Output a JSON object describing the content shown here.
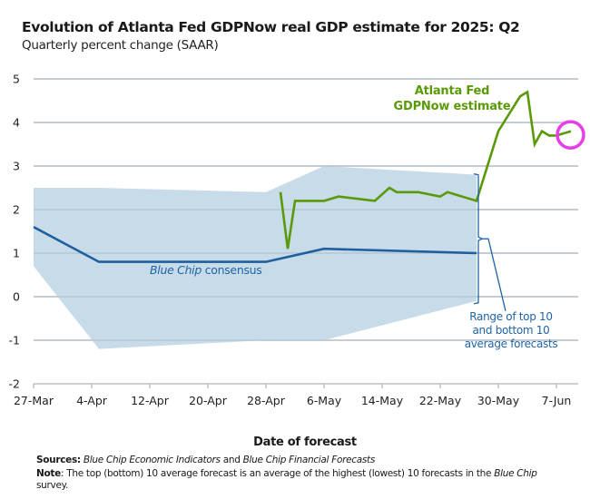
{
  "header": {
    "title": "Evolution of Atlanta Fed GDPNow real GDP estimate for 2025: Q2",
    "subtitle": "Quarterly percent change (SAAR)"
  },
  "footer": {
    "sources_label": "Sources:",
    "sources_part1": "Blue Chip Economic Indicators",
    "sources_and": " and ",
    "sources_part2": "Blue Chip Financial Forecasts",
    "note_label": "Note",
    "note_text": ": The top (bottom) 10 average forecast is an average of the highest (lowest) 10 forecasts in the ",
    "note_italic": "Blue Chip",
    "note_end": " survey."
  },
  "chart_data": {
    "type": "line",
    "title": "Evolution of Atlanta Fed GDPNow real GDP estimate for 2025: Q2",
    "subtitle": "Quarterly percent change (SAAR)",
    "xlabel": "Date of forecast",
    "ylabel": "",
    "ylim": [
      -2,
      5
    ],
    "yticks": [
      -2,
      -1,
      0,
      1,
      2,
      3,
      4,
      5
    ],
    "x_start": "27-Mar",
    "x_end_day": 75,
    "xticks": [
      {
        "label": "27-Mar",
        "day": 0
      },
      {
        "label": "4-Apr",
        "day": 8
      },
      {
        "label": "12-Apr",
        "day": 16
      },
      {
        "label": "20-Apr",
        "day": 24
      },
      {
        "label": "28-Apr",
        "day": 32
      },
      {
        "label": "6-May",
        "day": 40
      },
      {
        "label": "14-May",
        "day": 48
      },
      {
        "label": "22-May",
        "day": 56
      },
      {
        "label": "30-May",
        "day": 64
      },
      {
        "label": "7-Jun",
        "day": 72
      }
    ],
    "grid": true,
    "series": [
      {
        "name": "Atlanta Fed GDPNow estimate",
        "color": "#5a9a08",
        "points": [
          {
            "day": 34,
            "date": "30-Apr",
            "value": 2.4
          },
          {
            "day": 35,
            "date": "1-May",
            "value": 1.1
          },
          {
            "day": 36,
            "date": "2-May",
            "value": 2.2
          },
          {
            "day": 40,
            "date": "6-May",
            "value": 2.2
          },
          {
            "day": 42,
            "date": "8-May",
            "value": 2.3
          },
          {
            "day": 47,
            "date": "13-May",
            "value": 2.2
          },
          {
            "day": 49,
            "date": "15-May",
            "value": 2.5
          },
          {
            "day": 50,
            "date": "16-May",
            "value": 2.4
          },
          {
            "day": 53,
            "date": "19-May",
            "value": 2.4
          },
          {
            "day": 56,
            "date": "22-May",
            "value": 2.3
          },
          {
            "day": 57,
            "date": "23-May",
            "value": 2.4
          },
          {
            "day": 61,
            "date": "27-May",
            "value": 2.2
          },
          {
            "day": 64,
            "date": "30-May",
            "value": 3.8
          },
          {
            "day": 67,
            "date": "2-Jun",
            "value": 4.6
          },
          {
            "day": 68,
            "date": "3-Jun",
            "value": 4.7
          },
          {
            "day": 69,
            "date": "4-Jun",
            "value": 3.5
          },
          {
            "day": 70,
            "date": "5-Jun",
            "value": 3.8
          },
          {
            "day": 71,
            "date": "6-Jun",
            "value": 3.7
          },
          {
            "day": 72,
            "date": "7-Jun",
            "value": 3.7
          },
          {
            "day": 74,
            "date": "9-Jun",
            "value": 3.8
          }
        ]
      },
      {
        "name": "Blue Chip consensus",
        "color": "#1f5f9e",
        "points": [
          {
            "day": 0,
            "date": "27-Mar",
            "value": 1.6
          },
          {
            "day": 9,
            "date": "5-Apr",
            "value": 0.8
          },
          {
            "day": 32,
            "date": "28-Apr",
            "value": 0.8
          },
          {
            "day": 40,
            "date": "6-May",
            "value": 1.1
          },
          {
            "day": 61,
            "date": "27-May",
            "value": 1.0
          }
        ]
      }
    ],
    "band": {
      "name": "Range of top 10 and bottom 10 average forecasts",
      "color": "#c5d9e8",
      "upper": [
        {
          "day": 0,
          "value": 2.5
        },
        {
          "day": 9,
          "value": 2.5
        },
        {
          "day": 32,
          "value": 2.4
        },
        {
          "day": 40,
          "value": 3.0
        },
        {
          "day": 61,
          "value": 2.8
        }
      ],
      "lower": [
        {
          "day": 0,
          "value": 0.7
        },
        {
          "day": 9,
          "value": -1.2
        },
        {
          "day": 32,
          "value": -1.0
        },
        {
          "day": 40,
          "value": -1.0
        },
        {
          "day": 61,
          "value": -0.1
        }
      ]
    },
    "annotations": [
      {
        "text": [
          "Atlanta Fed",
          "GDPNow estimate"
        ],
        "color": "#5a9a08"
      },
      {
        "text_italic": "Blue Chip",
        "text": " consensus",
        "color": "#1f64a6"
      },
      {
        "text": [
          "Range of top 10",
          "and bottom 10",
          "average forecasts"
        ],
        "color": "#1f64a6"
      }
    ],
    "highlight": {
      "marker": "circle",
      "color": "#e83ee8",
      "day": 74,
      "value": 3.8
    }
  }
}
